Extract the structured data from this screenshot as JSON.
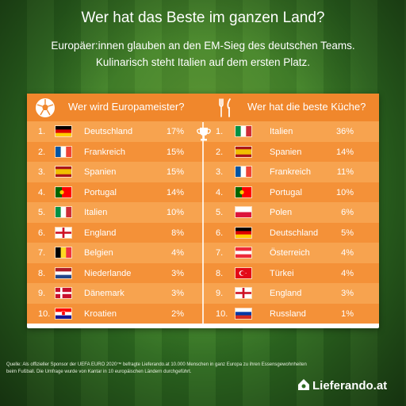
{
  "title": "Wer hat das Beste im ganzen Land?",
  "subtitle_line1": "Europäer:innen glauben an den EM-Sieg des deutschen Teams.",
  "subtitle_line2": "Kulinarisch steht Italien auf dem ersten Platz.",
  "left": {
    "heading": "Wer wird Europameister?",
    "icon": "soccer-ball-icon",
    "rows": [
      {
        "rank": "1.",
        "country": "Deutschland",
        "pct": "17%",
        "flag": "de"
      },
      {
        "rank": "2.",
        "country": "Frankreich",
        "pct": "15%",
        "flag": "fr"
      },
      {
        "rank": "3.",
        "country": "Spanien",
        "pct": "15%",
        "flag": "es"
      },
      {
        "rank": "4.",
        "country": "Portugal",
        "pct": "14%",
        "flag": "pt"
      },
      {
        "rank": "5.",
        "country": "Italien",
        "pct": "10%",
        "flag": "it"
      },
      {
        "rank": "6.",
        "country": "England",
        "pct": "8%",
        "flag": "en"
      },
      {
        "rank": "7.",
        "country": "Belgien",
        "pct": "4%",
        "flag": "be"
      },
      {
        "rank": "8.",
        "country": "Niederlande",
        "pct": "3%",
        "flag": "nl"
      },
      {
        "rank": "9.",
        "country": "Dänemark",
        "pct": "3%",
        "flag": "dk"
      },
      {
        "rank": "10.",
        "country": "Kroatien",
        "pct": "2%",
        "flag": "hr"
      }
    ]
  },
  "right": {
    "heading": "Wer hat die beste Küche?",
    "icon": "fork-knife-icon",
    "rows": [
      {
        "rank": "1.",
        "country": "Italien",
        "pct": "36%",
        "flag": "it"
      },
      {
        "rank": "2.",
        "country": "Spanien",
        "pct": "14%",
        "flag": "es"
      },
      {
        "rank": "3.",
        "country": "Frankreich",
        "pct": "11%",
        "flag": "fr"
      },
      {
        "rank": "4.",
        "country": "Portugal",
        "pct": "10%",
        "flag": "pt"
      },
      {
        "rank": "5.",
        "country": "Polen",
        "pct": "6%",
        "flag": "pl"
      },
      {
        "rank": "6.",
        "country": "Deutschland",
        "pct": "5%",
        "flag": "de"
      },
      {
        "rank": "7.",
        "country": "Österreich",
        "pct": "4%",
        "flag": "at"
      },
      {
        "rank": "8.",
        "country": "Türkei",
        "pct": "4%",
        "flag": "tr"
      },
      {
        "rank": "9.",
        "country": "England",
        "pct": "3%",
        "flag": "en"
      },
      {
        "rank": "10.",
        "country": "Russland",
        "pct": "1%",
        "flag": "ru"
      }
    ]
  },
  "footer": "Quelle: Als offizieller Sponsor der UEFA EURO 2020™ befragte Lieferando.at 10.000 Menschen in ganz Europa zu ihren Essensgewohnheiten beim Fußball. Die Umfrage wurde von Kantar in 10 europäischen Ländern durchgeführt.",
  "logo": "Lieferando.at",
  "colors": {
    "orange_header": "#f0872c",
    "row_light": "#f7a34f",
    "row_dark": "#f49138",
    "pitch": "#2f6e22"
  }
}
